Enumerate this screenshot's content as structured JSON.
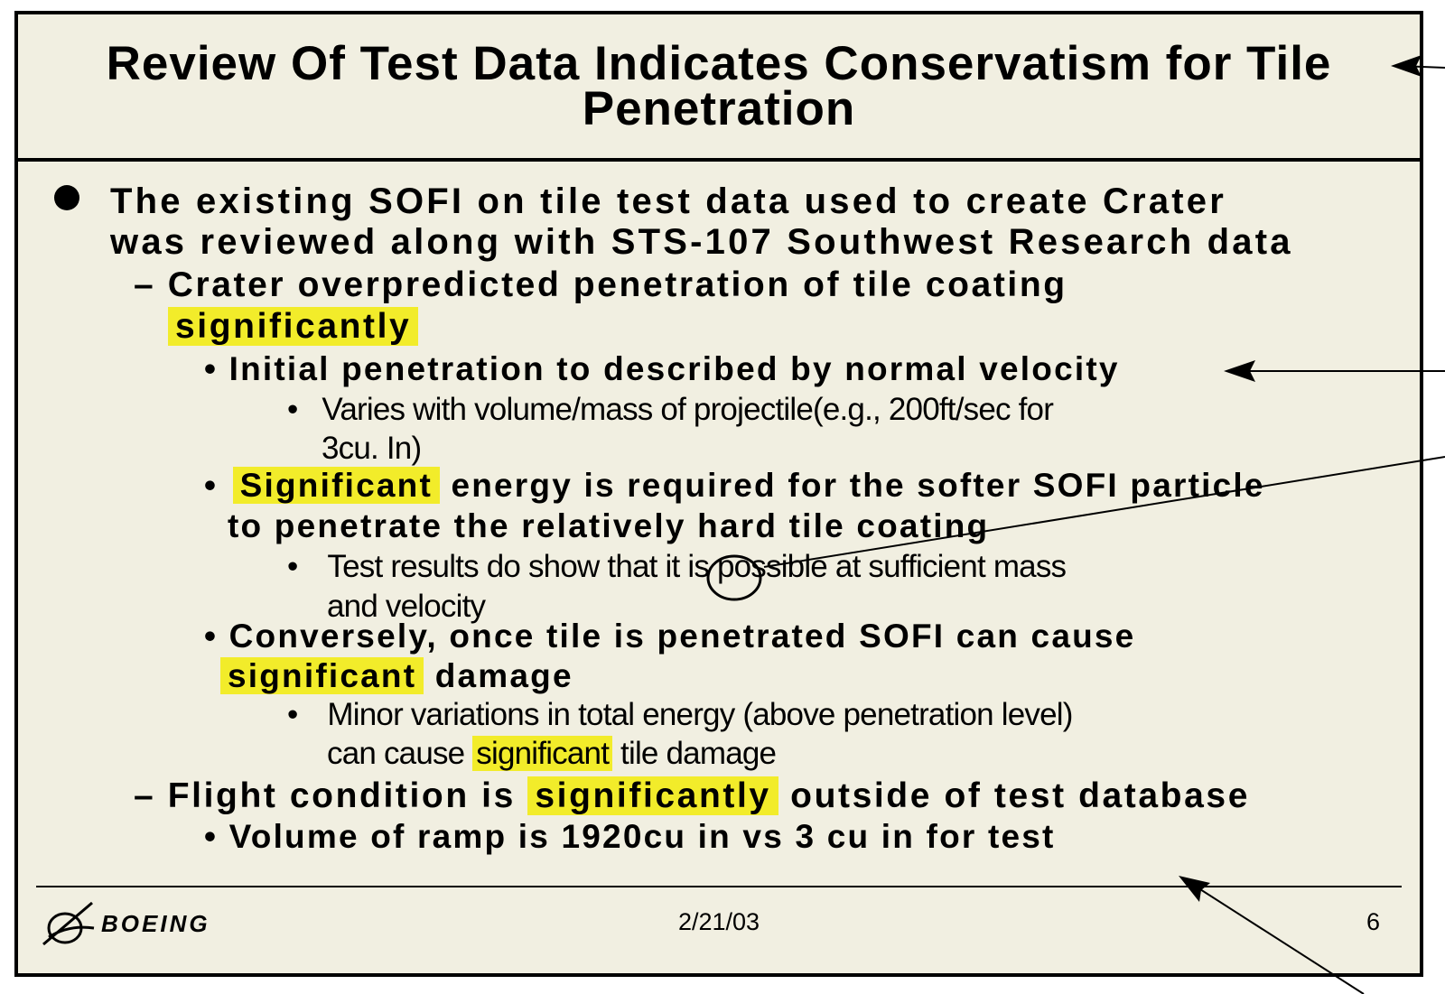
{
  "slide": {
    "title_line1": "Review Of Test Data Indicates Conservatism for Tile",
    "title_line2": "Penetration",
    "l1_a": "The existing SOFI on tile test data used to create Crater",
    "l1_b": "was reviewed along with STS-107 Southwest Research data",
    "l2a_a": "– Crater overpredicted penetration of tile coating",
    "l2a_b": "significantly",
    "l3a": "• Initial penetration to described by normal velocity",
    "l4a_a": "Varies with volume/mass of projectile(e.g., 200ft/sec for",
    "l4a_b": "3cu. In)",
    "l3b_hl": "Significant",
    "l3b_a_rest": " energy is required for the softer SOFI particle",
    "l3b_b": "to penetrate the relatively hard tile coating",
    "l4b_a1": "Test results do show that ",
    "l4b_a_circled": "it",
    "l4b_a2": " is possible at sufficient mass",
    "l4b_b": "and velocity",
    "l3c_a": "• Conversely, once tile is penetrated SOFI can cause",
    "l3c_b_hl": "significant",
    "l3c_b_rest": " damage",
    "l4c_a": "Minor variations in total energy (above penetration level)",
    "l4c_b1": "can cause ",
    "l4c_b_hl": "significant",
    "l4c_b2": " tile damage",
    "l2b_a": "– Flight condition is ",
    "l2b_hl": "significantly",
    "l2b_rest": " outside of test database",
    "l3d": "• Volume of ramp is 1920cu in vs 3 cu in for test",
    "bullet_l4": "•",
    "bullet_l3": "•"
  },
  "footer": {
    "logo_text": "BOEING",
    "date": "2/21/03",
    "page": "6"
  },
  "colors": {
    "background": "#f1efe1",
    "highlight": "#f2ec2a",
    "border": "#000000"
  }
}
